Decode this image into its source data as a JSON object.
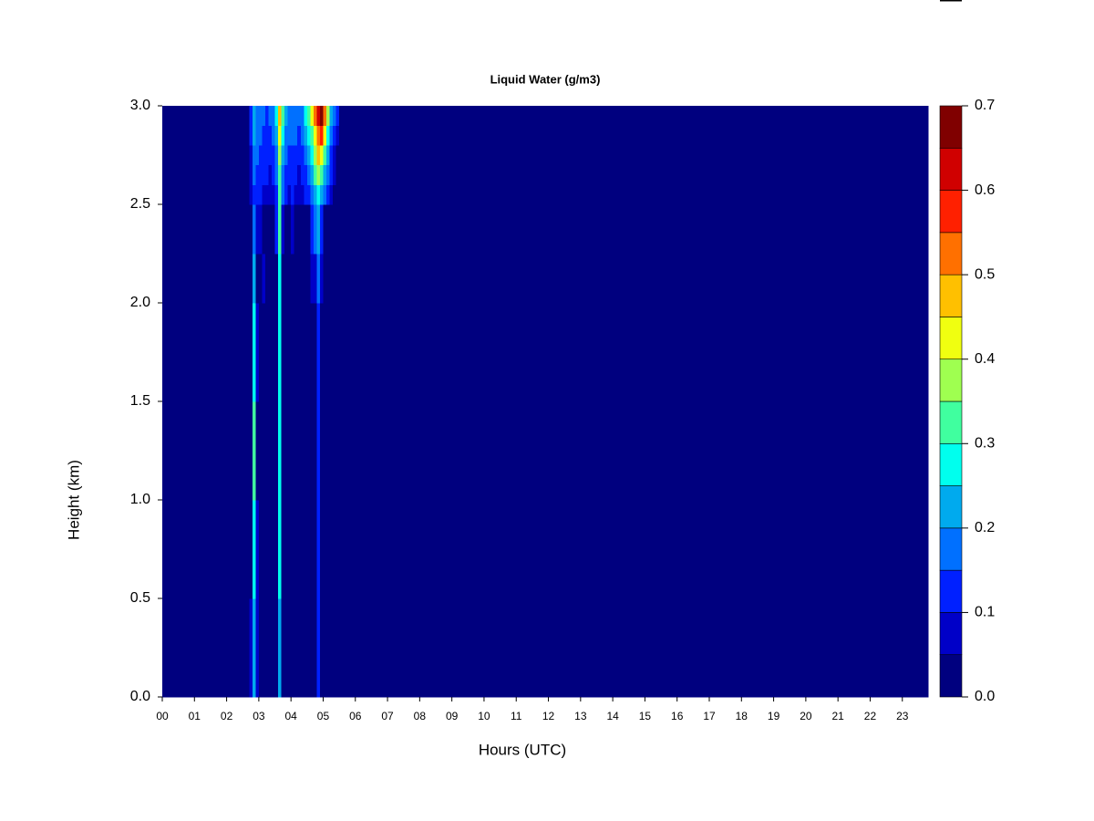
{
  "chart_data": {
    "type": "heatmap",
    "title": "Liquid Water (g/m3)",
    "xlabel": "Hours (UTC)",
    "ylabel": "Height (km)",
    "xlim": [
      0,
      23.8
    ],
    "ylim": [
      0,
      3
    ],
    "xticks": [
      {
        "value": 0,
        "label": "00"
      },
      {
        "value": 1,
        "label": "01"
      },
      {
        "value": 2,
        "label": "02"
      },
      {
        "value": 3,
        "label": "03"
      },
      {
        "value": 4,
        "label": "04"
      },
      {
        "value": 5,
        "label": "05"
      },
      {
        "value": 6,
        "label": "06"
      },
      {
        "value": 7,
        "label": "07"
      },
      {
        "value": 8,
        "label": "08"
      },
      {
        "value": 9,
        "label": "09"
      },
      10,
      11,
      12,
      13,
      14,
      15,
      16,
      17,
      18,
      19,
      20,
      21,
      22,
      23
    ],
    "yticks": [
      {
        "value": 0,
        "label": "0.0"
      },
      {
        "value": 0.5,
        "label": "0.5"
      },
      {
        "value": 1,
        "label": "1.0"
      },
      {
        "value": 1.5,
        "label": "1.5"
      },
      {
        "value": 2,
        "label": "2.0"
      },
      {
        "value": 2.5,
        "label": "2.5"
      },
      {
        "value": 3,
        "label": "3.0"
      }
    ],
    "xbins": [
      0,
      2.7,
      2.8,
      2.9,
      3.0,
      3.1,
      3.2,
      3.3,
      3.4,
      3.5,
      3.6,
      3.7,
      3.8,
      3.9,
      4.0,
      4.1,
      4.2,
      4.3,
      4.4,
      4.5,
      4.6,
      4.7,
      4.8,
      4.9,
      5.0,
      5.1,
      5.2,
      5.3,
      5.4,
      5.5,
      23.8
    ],
    "ybins": [
      0,
      0.5,
      1,
      1.5,
      2,
      2.25,
      2.5,
      2.6,
      2.7,
      2.8,
      2.9,
      3
    ],
    "z": [
      [
        0,
        0.06,
        0.2,
        0.06,
        0,
        0,
        0,
        0,
        0,
        0,
        0.2,
        0,
        0,
        0,
        0,
        0,
        0,
        0,
        0,
        0,
        0,
        0,
        0.1,
        0,
        0,
        0,
        0,
        0,
        0,
        0
      ],
      [
        0,
        0,
        0.25,
        0.06,
        0,
        0,
        0,
        0,
        0,
        0,
        0.25,
        0,
        0,
        0,
        0,
        0,
        0,
        0,
        0,
        0,
        0,
        0,
        0.12,
        0,
        0,
        0,
        0,
        0,
        0,
        0
      ],
      [
        0,
        0,
        0.3,
        0,
        0,
        0,
        0,
        0,
        0,
        0,
        0.25,
        0,
        0,
        0,
        0,
        0,
        0,
        0,
        0,
        0,
        0,
        0,
        0.12,
        0,
        0,
        0,
        0,
        0,
        0,
        0
      ],
      [
        0,
        0,
        0.28,
        0.06,
        0,
        0,
        0,
        0,
        0,
        0,
        0.25,
        0,
        0,
        0,
        0,
        0,
        0,
        0,
        0,
        0,
        0,
        0,
        0.12,
        0,
        0,
        0,
        0,
        0,
        0,
        0
      ],
      [
        0,
        0,
        0.2,
        0,
        0,
        0.06,
        0,
        0,
        0,
        0,
        0.25,
        0,
        0,
        0,
        0,
        0,
        0,
        0,
        0,
        0,
        0.06,
        0.08,
        0.15,
        0.06,
        0,
        0,
        0,
        0,
        0,
        0
      ],
      [
        0,
        0,
        0.15,
        0.08,
        0.06,
        0,
        0,
        0,
        0,
        0.1,
        0.3,
        0.08,
        0,
        0,
        0.06,
        0,
        0,
        0,
        0,
        0,
        0.1,
        0.15,
        0.2,
        0.12,
        0,
        0,
        0,
        0,
        0,
        0
      ],
      [
        0,
        0.06,
        0.12,
        0.1,
        0.1,
        0.08,
        0.08,
        0.06,
        0.08,
        0.12,
        0.3,
        0.15,
        0.1,
        0.08,
        0.1,
        0.08,
        0.06,
        0.08,
        0.1,
        0.12,
        0.15,
        0.2,
        0.25,
        0.2,
        0.15,
        0.1,
        0.06,
        0,
        0,
        0
      ],
      [
        0,
        0.08,
        0.15,
        0.12,
        0.12,
        0.1,
        0.1,
        0.08,
        0.1,
        0.15,
        0.3,
        0.18,
        0.12,
        0.1,
        0.12,
        0.1,
        0.08,
        0.1,
        0.12,
        0.15,
        0.2,
        0.3,
        0.35,
        0.3,
        0.2,
        0.15,
        0.1,
        0.06,
        0,
        0
      ],
      [
        0,
        0.08,
        0.18,
        0.15,
        0.12,
        0.12,
        0.1,
        0.1,
        0.12,
        0.18,
        0.35,
        0.2,
        0.15,
        0.12,
        0.12,
        0.12,
        0.1,
        0.12,
        0.15,
        0.2,
        0.25,
        0.35,
        0.45,
        0.4,
        0.3,
        0.2,
        0.12,
        0.08,
        0,
        0
      ],
      [
        0,
        0.1,
        0.2,
        0.15,
        0.15,
        0.12,
        0.12,
        0.12,
        0.15,
        0.2,
        0.4,
        0.25,
        0.18,
        0.15,
        0.15,
        0.15,
        0.12,
        0.15,
        0.2,
        0.25,
        0.3,
        0.4,
        0.5,
        0.55,
        0.4,
        0.25,
        0.18,
        0.12,
        0.06,
        0
      ],
      [
        0,
        0.1,
        0.2,
        0.18,
        0.15,
        0.15,
        0.12,
        0.15,
        0.15,
        0.25,
        0.45,
        0.3,
        0.2,
        0.18,
        0.18,
        0.15,
        0.15,
        0.18,
        0.25,
        0.3,
        0.4,
        0.5,
        0.6,
        0.68,
        0.5,
        0.35,
        0.22,
        0.15,
        0.1,
        0
      ]
    ],
    "levels": [
      0,
      0.05,
      0.1,
      0.15,
      0.2,
      0.25,
      0.3,
      0.35,
      0.4,
      0.45,
      0.5,
      0.55,
      0.6,
      0.65,
      0.7
    ],
    "colors": [
      "#00007f",
      "#0000c8",
      "#0020ff",
      "#0070ff",
      "#00aaee",
      "#00ffee",
      "#40ff9f",
      "#9fff50",
      "#f0ff10",
      "#ffc000",
      "#ff7000",
      "#ff2000",
      "#d00000",
      "#800000"
    ],
    "zticks": [
      {
        "value": 0,
        "label": "0.0"
      },
      {
        "value": 0.1,
        "label": "0.1"
      },
      {
        "value": 0.2,
        "label": "0.2"
      },
      {
        "value": 0.3,
        "label": "0.3"
      },
      {
        "value": 0.4,
        "label": "0.4"
      },
      {
        "value": 0.5,
        "label": "0.5"
      },
      {
        "value": 0.6,
        "label": "0.6"
      },
      {
        "value": 0.7,
        "label": "0.7"
      }
    ]
  }
}
